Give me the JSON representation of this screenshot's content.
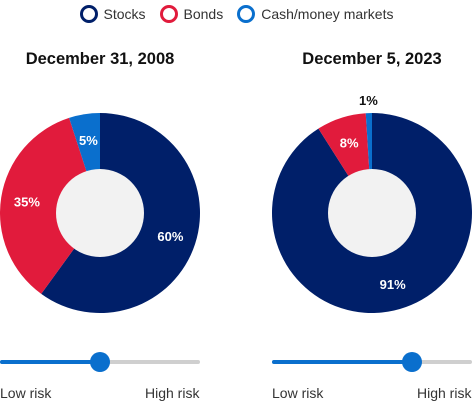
{
  "legend": [
    {
      "label": "Stocks",
      "color": "#001f69"
    },
    {
      "label": "Bonds",
      "color": "#e11b3c"
    },
    {
      "label": "Cash/money markets",
      "color": "#0a6fcd"
    }
  ],
  "chart_data": [
    {
      "type": "pie",
      "title": "December 31, 2008",
      "categories": [
        "Stocks",
        "Bonds",
        "Cash/money markets"
      ],
      "values": [
        60,
        35,
        5
      ],
      "labels": [
        "60%",
        "35%",
        "5%"
      ],
      "colors": [
        "#001f69",
        "#e11b3c",
        "#0a6fcd"
      ],
      "donut": true,
      "risk_level": 0.5
    },
    {
      "type": "pie",
      "title": "December 5, 2023",
      "categories": [
        "Stocks",
        "Bonds",
        "Cash/money markets"
      ],
      "values": [
        91,
        8,
        1
      ],
      "labels": [
        "91%",
        "8%",
        "1%"
      ],
      "colors": [
        "#001f69",
        "#e11b3c",
        "#0a6fcd"
      ],
      "donut": true,
      "risk_level": 0.7
    }
  ],
  "risk": {
    "low_label": "Low risk",
    "high_label": "High risk"
  }
}
